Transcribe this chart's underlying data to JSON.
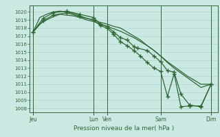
{
  "bg_color": "#cce8e2",
  "grid_color": "#aad4cc",
  "line_color": "#2d6632",
  "xlabel": "Pression niveau de la mer( hPa )",
  "ylim": [
    1007.5,
    1020.8
  ],
  "ytick_vals": [
    1008,
    1009,
    1010,
    1011,
    1012,
    1013,
    1014,
    1015,
    1016,
    1017,
    1018,
    1019,
    1020
  ],
  "xlim": [
    0,
    28
  ],
  "vline_x": [
    0.5,
    9.5,
    11.5,
    19.5,
    27.0
  ],
  "xtick_x": [
    0.5,
    9.5,
    11.5,
    19.5,
    27.0
  ],
  "day_labels": [
    "Jeu",
    "Lun",
    "Ven",
    "Sam",
    "Dim"
  ],
  "s1_x": [
    0.5,
    1.5,
    2.5,
    3.5,
    4.5,
    5.5,
    6.5,
    7.5,
    8.5,
    9.5,
    10.5,
    11.5,
    12.5,
    13.5,
    14.5,
    15.5,
    16.5,
    17.5,
    18.5,
    19.5,
    20.5,
    21.5,
    22.5,
    23.5,
    24.5,
    25.5,
    27.0
  ],
  "s1_y": [
    1017.5,
    1019.3,
    1019.7,
    1020.0,
    1020.1,
    1020.0,
    1019.8,
    1019.5,
    1019.2,
    1019.0,
    1018.7,
    1018.5,
    1018.2,
    1018.0,
    1017.5,
    1017.0,
    1016.5,
    1015.8,
    1015.2,
    1014.5,
    1013.8,
    1013.2,
    1012.6,
    1012.0,
    1011.5,
    1011.0,
    1011.0
  ],
  "s2_x": [
    0.5,
    1.5,
    2.5,
    3.5,
    4.5,
    5.5,
    6.5,
    7.5,
    8.5,
    9.5,
    10.5,
    11.5,
    12.5,
    13.5,
    14.5,
    15.5,
    16.5,
    17.5,
    18.5,
    19.5,
    20.5,
    21.5,
    22.5,
    23.5,
    24.5,
    25.5,
    27.0
  ],
  "s2_y": [
    1017.5,
    1018.5,
    1019.0,
    1019.4,
    1019.7,
    1019.6,
    1019.5,
    1019.3,
    1019.0,
    1018.8,
    1018.5,
    1018.2,
    1017.9,
    1017.6,
    1017.2,
    1016.8,
    1016.3,
    1015.8,
    1015.2,
    1014.5,
    1013.7,
    1013.0,
    1012.4,
    1011.8,
    1011.2,
    1010.6,
    1011.0
  ],
  "s3_x": [
    0.5,
    2.0,
    3.5,
    5.5,
    7.5,
    9.5,
    10.5,
    11.5,
    12.5,
    13.5,
    14.5,
    15.5,
    16.0,
    17.5,
    18.5,
    19.5,
    20.5,
    21.5,
    22.5,
    23.8,
    25.5,
    27.0
  ],
  "s3_y": [
    1017.5,
    1019.2,
    1019.9,
    1020.1,
    1019.7,
    1019.3,
    1018.5,
    1018.2,
    1017.5,
    1016.8,
    1016.5,
    1015.7,
    1015.5,
    1015.2,
    1014.5,
    1013.8,
    1012.7,
    1012.5,
    1009.8,
    1008.4,
    1008.2,
    1011.0
  ],
  "s4_x": [
    0.5,
    2.0,
    3.5,
    5.5,
    7.5,
    9.5,
    10.5,
    11.5,
    12.5,
    13.5,
    14.5,
    15.5,
    16.5,
    17.5,
    18.5,
    19.5,
    20.5,
    21.5,
    22.5,
    23.8,
    25.5,
    27.0
  ],
  "s4_y": [
    1017.5,
    1018.9,
    1019.6,
    1019.9,
    1019.4,
    1019.0,
    1018.3,
    1018.0,
    1017.2,
    1016.3,
    1015.8,
    1015.2,
    1014.5,
    1013.7,
    1013.0,
    1012.6,
    1009.5,
    1012.3,
    1008.2,
    1008.3,
    1008.3,
    1011.0
  ]
}
